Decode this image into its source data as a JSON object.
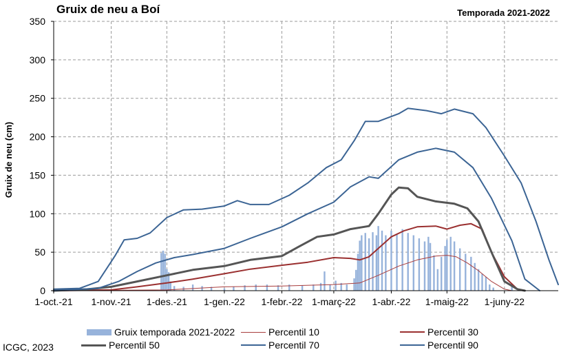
{
  "title": "Gruix de neu a Boí",
  "season": "Temporada 2021-2022",
  "credit": "ICGC, 2023",
  "colors": {
    "bars": "#97b3db",
    "p10": "#a83c3c",
    "p30": "#9a2f2f",
    "p50": "#555555",
    "p70": "#3b6494",
    "p90": "#3b6494",
    "grid": "#9a9a9a"
  },
  "chart_data": {
    "type": "line",
    "ylabel": "Gruix de neu (cm)",
    "xlabel": "",
    "ylim": [
      0,
      350
    ],
    "yticks": [
      0,
      50,
      100,
      150,
      200,
      250,
      300,
      350
    ],
    "xlim": [
      "2021-10-01",
      "2022-06-30"
    ],
    "x_tick_dates": [
      "2021-10-01",
      "2021-11-01",
      "2021-12-01",
      "2022-01-01",
      "2022-02-01",
      "2022-03-01",
      "2022-04-01",
      "2022-05-01",
      "2022-06-01"
    ],
    "x_tick_labels": [
      "1-oct.-21",
      "1-nov.-21",
      "1-des.-21",
      "1-gen.-22",
      "1-febr.-22",
      "1-març-22",
      "1-abr.-22",
      "1-maig-22",
      "1-juny-22"
    ],
    "grid": true,
    "legend_position": "bottom",
    "series": [
      {
        "name": "Gruix temporada 2021-2022",
        "kind": "bar",
        "color_key": "bars",
        "points": [
          [
            "2021-11-28",
            49
          ],
          [
            "2021-11-29",
            52
          ],
          [
            "2021-11-30",
            48
          ],
          [
            "2021-12-01",
            28
          ],
          [
            "2021-12-02",
            24
          ],
          [
            "2021-12-03",
            12
          ],
          [
            "2021-12-05",
            6
          ],
          [
            "2021-12-10",
            5
          ],
          [
            "2021-12-15",
            8
          ],
          [
            "2021-12-20",
            6
          ],
          [
            "2021-12-25",
            5
          ],
          [
            "2022-01-01",
            3
          ],
          [
            "2022-01-06",
            5
          ],
          [
            "2022-01-12",
            7
          ],
          [
            "2022-01-18",
            8
          ],
          [
            "2022-01-24",
            8
          ],
          [
            "2022-01-30",
            7
          ],
          [
            "2022-02-05",
            8
          ],
          [
            "2022-02-12",
            7
          ],
          [
            "2022-02-18",
            8
          ],
          [
            "2022-02-22",
            10
          ],
          [
            "2022-02-24",
            25
          ],
          [
            "2022-02-27",
            8
          ],
          [
            "2022-03-02",
            13
          ],
          [
            "2022-03-05",
            10
          ],
          [
            "2022-03-08",
            8
          ],
          [
            "2022-03-12",
            16
          ],
          [
            "2022-03-13",
            27
          ],
          [
            "2022-03-14",
            48
          ],
          [
            "2022-03-15",
            65
          ],
          [
            "2022-03-16",
            72
          ],
          [
            "2022-03-18",
            75
          ],
          [
            "2022-03-20",
            68
          ],
          [
            "2022-03-22",
            76
          ],
          [
            "2022-03-24",
            72
          ],
          [
            "2022-03-25",
            84
          ],
          [
            "2022-03-27",
            78
          ],
          [
            "2022-03-29",
            72
          ],
          [
            "2022-04-01",
            78
          ],
          [
            "2022-04-04",
            74
          ],
          [
            "2022-04-07",
            80
          ],
          [
            "2022-04-10",
            75
          ],
          [
            "2022-04-13",
            72
          ],
          [
            "2022-04-16",
            68
          ],
          [
            "2022-04-19",
            64
          ],
          [
            "2022-04-21",
            70
          ],
          [
            "2022-04-22",
            62
          ],
          [
            "2022-04-24",
            46
          ],
          [
            "2022-04-26",
            28
          ],
          [
            "2022-04-28",
            44
          ],
          [
            "2022-04-30",
            58
          ],
          [
            "2022-05-01",
            66
          ],
          [
            "2022-05-03",
            70
          ],
          [
            "2022-05-05",
            64
          ],
          [
            "2022-05-08",
            55
          ],
          [
            "2022-05-11",
            48
          ],
          [
            "2022-05-14",
            44
          ],
          [
            "2022-05-16",
            36
          ],
          [
            "2022-05-18",
            28
          ],
          [
            "2022-05-20",
            22
          ],
          [
            "2022-05-22",
            18
          ],
          [
            "2022-05-24",
            8
          ],
          [
            "2022-05-26",
            4
          ],
          [
            "2022-06-05",
            9
          ]
        ]
      },
      {
        "name": "Percentil 10",
        "kind": "line",
        "color_key": "p10",
        "width": 1,
        "points": [
          [
            "2021-10-01",
            0
          ],
          [
            "2021-12-01",
            1
          ],
          [
            "2022-01-01",
            5
          ],
          [
            "2022-02-01",
            6
          ],
          [
            "2022-03-01",
            8
          ],
          [
            "2022-03-15",
            10
          ],
          [
            "2022-03-25",
            20
          ],
          [
            "2022-04-05",
            32
          ],
          [
            "2022-04-15",
            40
          ],
          [
            "2022-04-25",
            45
          ],
          [
            "2022-05-01",
            46
          ],
          [
            "2022-05-06",
            44
          ],
          [
            "2022-05-12",
            36
          ],
          [
            "2022-05-18",
            26
          ],
          [
            "2022-05-25",
            12
          ],
          [
            "2022-06-01",
            2
          ],
          [
            "2022-06-05",
            0
          ]
        ]
      },
      {
        "name": "Percentil 30",
        "kind": "line",
        "color_key": "p30",
        "width": 2,
        "points": [
          [
            "2021-10-01",
            0
          ],
          [
            "2021-11-01",
            1
          ],
          [
            "2021-11-15",
            5
          ],
          [
            "2021-12-01",
            10
          ],
          [
            "2021-12-15",
            15
          ],
          [
            "2022-01-01",
            22
          ],
          [
            "2022-01-15",
            28
          ],
          [
            "2022-02-01",
            33
          ],
          [
            "2022-02-15",
            37
          ],
          [
            "2022-03-01",
            43
          ],
          [
            "2022-03-10",
            42
          ],
          [
            "2022-03-15",
            40
          ],
          [
            "2022-03-20",
            44
          ],
          [
            "2022-03-25",
            55
          ],
          [
            "2022-04-01",
            70
          ],
          [
            "2022-04-08",
            78
          ],
          [
            "2022-04-15",
            83
          ],
          [
            "2022-04-25",
            84
          ],
          [
            "2022-05-01",
            80
          ],
          [
            "2022-05-08",
            85
          ],
          [
            "2022-05-14",
            87
          ],
          [
            "2022-05-20",
            80
          ],
          [
            "2022-05-25",
            50
          ],
          [
            "2022-06-01",
            18
          ],
          [
            "2022-06-08",
            2
          ],
          [
            "2022-06-12",
            0
          ]
        ]
      },
      {
        "name": "Percentil 50",
        "kind": "line",
        "color_key": "p50",
        "width": 3,
        "points": [
          [
            "2021-10-01",
            0
          ],
          [
            "2021-10-20",
            2
          ],
          [
            "2021-11-01",
            5
          ],
          [
            "2021-11-15",
            12
          ],
          [
            "2021-12-01",
            20
          ],
          [
            "2021-12-15",
            27
          ],
          [
            "2022-01-01",
            32
          ],
          [
            "2022-01-15",
            40
          ],
          [
            "2022-02-01",
            45
          ],
          [
            "2022-02-10",
            57
          ],
          [
            "2022-02-20",
            70
          ],
          [
            "2022-03-01",
            73
          ],
          [
            "2022-03-10",
            80
          ],
          [
            "2022-03-20",
            84
          ],
          [
            "2022-03-25",
            100
          ],
          [
            "2022-04-01",
            125
          ],
          [
            "2022-04-05",
            134
          ],
          [
            "2022-04-10",
            133
          ],
          [
            "2022-04-15",
            122
          ],
          [
            "2022-04-25",
            116
          ],
          [
            "2022-05-05",
            113
          ],
          [
            "2022-05-12",
            107
          ],
          [
            "2022-05-18",
            90
          ],
          [
            "2022-05-25",
            50
          ],
          [
            "2022-06-01",
            12
          ],
          [
            "2022-06-08",
            2
          ],
          [
            "2022-06-12",
            0
          ]
        ]
      },
      {
        "name": "Percentil 70",
        "kind": "line",
        "color_key": "p70",
        "width": 2,
        "points": [
          [
            "2021-10-01",
            0
          ],
          [
            "2021-10-25",
            3
          ],
          [
            "2021-11-05",
            12
          ],
          [
            "2021-11-15",
            25
          ],
          [
            "2021-11-25",
            36
          ],
          [
            "2021-12-05",
            43
          ],
          [
            "2021-12-15",
            47
          ],
          [
            "2022-01-01",
            55
          ],
          [
            "2022-01-15",
            68
          ],
          [
            "2022-02-01",
            83
          ],
          [
            "2022-02-15",
            100
          ],
          [
            "2022-03-01",
            115
          ],
          [
            "2022-03-10",
            135
          ],
          [
            "2022-03-20",
            148
          ],
          [
            "2022-03-25",
            146
          ],
          [
            "2022-04-05",
            170
          ],
          [
            "2022-04-15",
            180
          ],
          [
            "2022-04-25",
            185
          ],
          [
            "2022-05-05",
            180
          ],
          [
            "2022-05-15",
            160
          ],
          [
            "2022-05-25",
            120
          ],
          [
            "2022-06-05",
            65
          ],
          [
            "2022-06-12",
            15
          ],
          [
            "2022-06-20",
            0
          ]
        ]
      },
      {
        "name": "Percentil 90",
        "kind": "line",
        "color_key": "p90",
        "width": 2,
        "points": [
          [
            "2021-10-01",
            2
          ],
          [
            "2021-10-15",
            3
          ],
          [
            "2021-10-25",
            12
          ],
          [
            "2021-11-03",
            45
          ],
          [
            "2021-11-08",
            66
          ],
          [
            "2021-11-15",
            68
          ],
          [
            "2021-11-22",
            75
          ],
          [
            "2021-12-01",
            95
          ],
          [
            "2021-12-10",
            105
          ],
          [
            "2021-12-20",
            106
          ],
          [
            "2022-01-01",
            110
          ],
          [
            "2022-01-08",
            117
          ],
          [
            "2022-01-15",
            112
          ],
          [
            "2022-01-25",
            112
          ],
          [
            "2022-02-05",
            124
          ],
          [
            "2022-02-15",
            140
          ],
          [
            "2022-02-25",
            160
          ],
          [
            "2022-03-05",
            170
          ],
          [
            "2022-03-12",
            195
          ],
          [
            "2022-03-18",
            220
          ],
          [
            "2022-03-25",
            220
          ],
          [
            "2022-04-05",
            230
          ],
          [
            "2022-04-10",
            237
          ],
          [
            "2022-04-20",
            234
          ],
          [
            "2022-04-28",
            230
          ],
          [
            "2022-05-05",
            236
          ],
          [
            "2022-05-15",
            230
          ],
          [
            "2022-05-22",
            212
          ],
          [
            "2022-06-01",
            175
          ],
          [
            "2022-06-10",
            140
          ],
          [
            "2022-06-18",
            90
          ],
          [
            "2022-06-25",
            40
          ],
          [
            "2022-06-30",
            8
          ]
        ]
      }
    ]
  }
}
